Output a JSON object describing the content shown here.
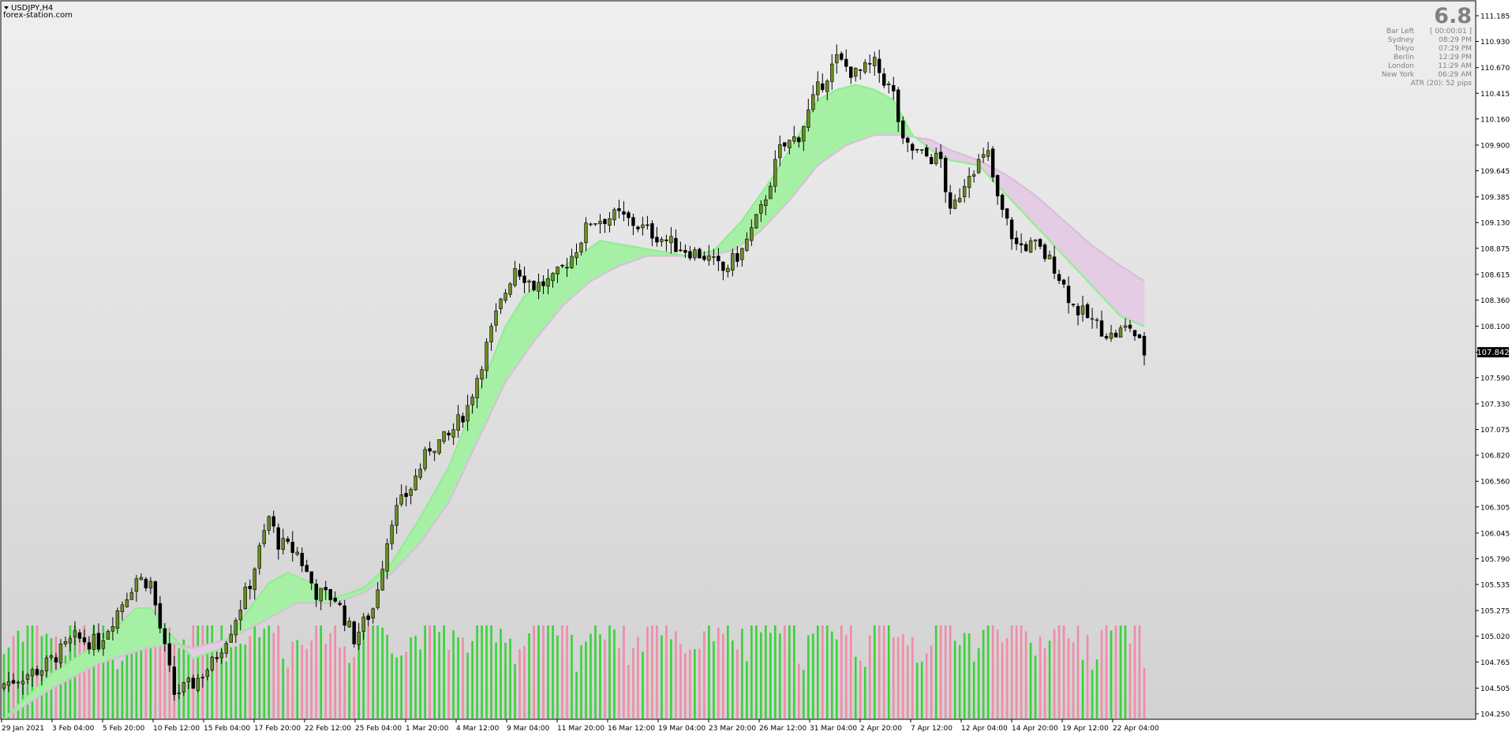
{
  "header": {
    "symbol_label": "USDJPY,H4",
    "watermark": "forex-station.com"
  },
  "info_panel": {
    "big_value": "6.8",
    "rows": [
      {
        "label": "Bar Left",
        "value": "[ 00:00:01 ]"
      },
      {
        "label": "Sydney",
        "value": "08:29 PM"
      },
      {
        "label": "Tokyo",
        "value": "07:29 PM"
      },
      {
        "label": "Berlin",
        "value": "12:29 PM"
      },
      {
        "label": "London",
        "value": "11:29 AM"
      },
      {
        "label": "New York",
        "value": "06:29 AM"
      }
    ],
    "atr_text": "ATR (20): 52 pips"
  },
  "colors": {
    "background_top": "#efefef",
    "background_bottom": "#d2d2d2",
    "bull_candle": "#6b8e23",
    "bear_candle": "#000000",
    "wick": "#000000",
    "ribbon_bull_fill": "#a6f0a6",
    "ribbon_bear_fill": "#e4cce4",
    "fast_line": "#90ee90",
    "slow_line": "#d8bfd8",
    "volume_up": "#3ad33a",
    "volume_down": "#f08ca8",
    "price_tag_bg": "#000000",
    "price_tag_text": "#ffffff"
  },
  "chart_data": {
    "type": "candlestick",
    "symbol": "USDJPY",
    "timeframe": "H4",
    "ylim": [
      104.25,
      111.185
    ],
    "y_ticks": [
      "111.185",
      "110.930",
      "110.670",
      "110.415",
      "110.160",
      "109.900",
      "109.645",
      "109.385",
      "109.130",
      "108.875",
      "108.615",
      "108.360",
      "108.100",
      "107.842",
      "107.590",
      "107.330",
      "107.075",
      "106.820",
      "106.560",
      "106.305",
      "106.045",
      "105.790",
      "105.535",
      "105.275",
      "105.020",
      "104.765",
      "104.505",
      "104.250"
    ],
    "current_price": "107.842",
    "x_tick_labels": [
      "29 Jan 2021",
      "3 Feb 04:00",
      "5 Feb 20:00",
      "10 Feb 12:00",
      "15 Feb 04:00",
      "17 Feb 20:00",
      "22 Feb 12:00",
      "25 Feb 04:00",
      "1 Mar 20:00",
      "4 Mar 12:00",
      "9 Mar 04:00",
      "11 Mar 20:00",
      "16 Mar 12:00",
      "19 Mar 04:00",
      "23 Mar 20:00",
      "26 Mar 12:00",
      "31 Mar 04:00",
      "2 Apr 20:00",
      "7 Apr 12:00",
      "12 Apr 04:00",
      "14 Apr 20:00",
      "19 Apr 12:00",
      "22 Apr 04:00"
    ],
    "close_path": [
      [
        0,
        104.55
      ],
      [
        8,
        104.7
      ],
      [
        15,
        105.0
      ],
      [
        20,
        104.95
      ],
      [
        28,
        105.6
      ],
      [
        31,
        105.55
      ],
      [
        33,
        105.1
      ],
      [
        36,
        104.45
      ],
      [
        40,
        104.55
      ],
      [
        44,
        104.75
      ],
      [
        48,
        105.1
      ],
      [
        52,
        105.55
      ],
      [
        56,
        106.2
      ],
      [
        58,
        105.95
      ],
      [
        62,
        105.85
      ],
      [
        66,
        105.45
      ],
      [
        70,
        105.4
      ],
      [
        74,
        105.0
      ],
      [
        78,
        105.3
      ],
      [
        82,
        106.2
      ],
      [
        86,
        106.5
      ],
      [
        90,
        106.9
      ],
      [
        94,
        107.0
      ],
      [
        98,
        107.3
      ],
      [
        104,
        108.2
      ],
      [
        108,
        108.7
      ],
      [
        112,
        108.5
      ],
      [
        116,
        108.55
      ],
      [
        120,
        108.8
      ],
      [
        124,
        109.15
      ],
      [
        130,
        109.2
      ],
      [
        134,
        109.1
      ],
      [
        138,
        109.0
      ],
      [
        142,
        108.9
      ],
      [
        148,
        108.8
      ],
      [
        152,
        108.65
      ],
      [
        156,
        108.85
      ],
      [
        160,
        109.25
      ],
      [
        164,
        109.85
      ],
      [
        168,
        110.0
      ],
      [
        172,
        110.45
      ],
      [
        176,
        110.75
      ],
      [
        180,
        110.6
      ],
      [
        184,
        110.7
      ],
      [
        188,
        110.4
      ],
      [
        190,
        109.9
      ],
      [
        194,
        109.8
      ],
      [
        198,
        109.75
      ],
      [
        200,
        109.2
      ],
      [
        204,
        109.65
      ],
      [
        208,
        109.8
      ],
      [
        210,
        109.35
      ],
      [
        214,
        108.9
      ],
      [
        218,
        108.9
      ],
      [
        222,
        108.7
      ],
      [
        226,
        108.3
      ],
      [
        230,
        108.15
      ],
      [
        234,
        108.0
      ],
      [
        238,
        108.1
      ],
      [
        241,
        107.84
      ]
    ],
    "fast_ma": [
      [
        0,
        104.2
      ],
      [
        10,
        104.65
      ],
      [
        20,
        104.95
      ],
      [
        28,
        105.3
      ],
      [
        31,
        105.3
      ],
      [
        35,
        105.05
      ],
      [
        40,
        104.8
      ],
      [
        46,
        104.9
      ],
      [
        52,
        105.3
      ],
      [
        56,
        105.55
      ],
      [
        60,
        105.65
      ],
      [
        65,
        105.55
      ],
      [
        70,
        105.4
      ],
      [
        76,
        105.5
      ],
      [
        82,
        105.75
      ],
      [
        88,
        106.2
      ],
      [
        94,
        106.7
      ],
      [
        100,
        107.4
      ],
      [
        106,
        108.1
      ],
      [
        110,
        108.4
      ],
      [
        114,
        108.55
      ],
      [
        120,
        108.75
      ],
      [
        126,
        108.95
      ],
      [
        132,
        108.9
      ],
      [
        138,
        108.85
      ],
      [
        144,
        108.8
      ],
      [
        150,
        108.85
      ],
      [
        156,
        109.15
      ],
      [
        162,
        109.55
      ],
      [
        168,
        110.0
      ],
      [
        172,
        110.35
      ],
      [
        176,
        110.45
      ],
      [
        180,
        110.5
      ],
      [
        184,
        110.45
      ],
      [
        188,
        110.35
      ],
      [
        192,
        110.0
      ],
      [
        196,
        109.85
      ],
      [
        200,
        109.75
      ],
      [
        206,
        109.7
      ],
      [
        212,
        109.4
      ],
      [
        218,
        109.1
      ],
      [
        224,
        108.8
      ],
      [
        230,
        108.5
      ],
      [
        236,
        108.2
      ],
      [
        241,
        108.1
      ]
    ],
    "slow_ma": [
      [
        0,
        104.2
      ],
      [
        10,
        104.5
      ],
      [
        20,
        104.75
      ],
      [
        30,
        104.9
      ],
      [
        36,
        104.95
      ],
      [
        40,
        104.9
      ],
      [
        48,
        105.0
      ],
      [
        56,
        105.2
      ],
      [
        62,
        105.35
      ],
      [
        70,
        105.35
      ],
      [
        76,
        105.45
      ],
      [
        82,
        105.65
      ],
      [
        88,
        105.95
      ],
      [
        94,
        106.35
      ],
      [
        100,
        106.95
      ],
      [
        106,
        107.55
      ],
      [
        112,
        107.95
      ],
      [
        118,
        108.3
      ],
      [
        124,
        108.55
      ],
      [
        130,
        108.7
      ],
      [
        136,
        108.8
      ],
      [
        142,
        108.8
      ],
      [
        148,
        108.8
      ],
      [
        154,
        108.85
      ],
      [
        160,
        109.05
      ],
      [
        166,
        109.35
      ],
      [
        172,
        109.7
      ],
      [
        178,
        109.9
      ],
      [
        184,
        110.0
      ],
      [
        190,
        110.0
      ],
      [
        196,
        109.95
      ],
      [
        200,
        109.85
      ],
      [
        206,
        109.75
      ],
      [
        212,
        109.6
      ],
      [
        218,
        109.4
      ],
      [
        224,
        109.15
      ],
      [
        230,
        108.9
      ],
      [
        236,
        108.7
      ],
      [
        241,
        108.55
      ]
    ],
    "bars_count": 242
  }
}
